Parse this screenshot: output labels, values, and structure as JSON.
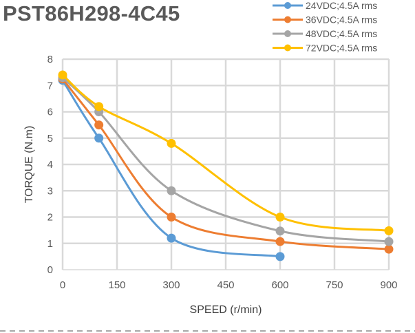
{
  "chart_data": {
    "type": "line",
    "title": "PST86H298-4C45",
    "xlabel": "SPEED (r/min)",
    "ylabel": "TORQUE (N.m)",
    "xlim": [
      0,
      900
    ],
    "ylim": [
      0,
      8
    ],
    "xticks": [
      0,
      150,
      300,
      450,
      600,
      750,
      900
    ],
    "yticks": [
      0,
      1,
      2,
      3,
      4,
      5,
      6,
      7,
      8
    ],
    "grid": true,
    "legend_position": "top-right",
    "series": [
      {
        "name": "24VDC;4.5A rms",
        "color": "#5B9BD5",
        "x": [
          0,
          100,
          300,
          600
        ],
        "y": [
          7.2,
          5.0,
          1.2,
          0.5
        ]
      },
      {
        "name": "36VDC;4.5A rms",
        "color": "#ED7D31",
        "x": [
          0,
          100,
          300,
          600,
          900
        ],
        "y": [
          7.25,
          5.5,
          2.0,
          1.07,
          0.78
        ]
      },
      {
        "name": "48VDC;4.5A rms",
        "color": "#A5A5A5",
        "x": [
          0,
          100,
          300,
          600,
          900
        ],
        "y": [
          7.3,
          6.0,
          3.0,
          1.47,
          1.07
        ]
      },
      {
        "name": "72VDC;4.5A rms",
        "color": "#FFC000",
        "x": [
          0,
          100,
          300,
          600,
          900
        ],
        "y": [
          7.4,
          6.2,
          4.8,
          2.0,
          1.48
        ]
      }
    ]
  }
}
